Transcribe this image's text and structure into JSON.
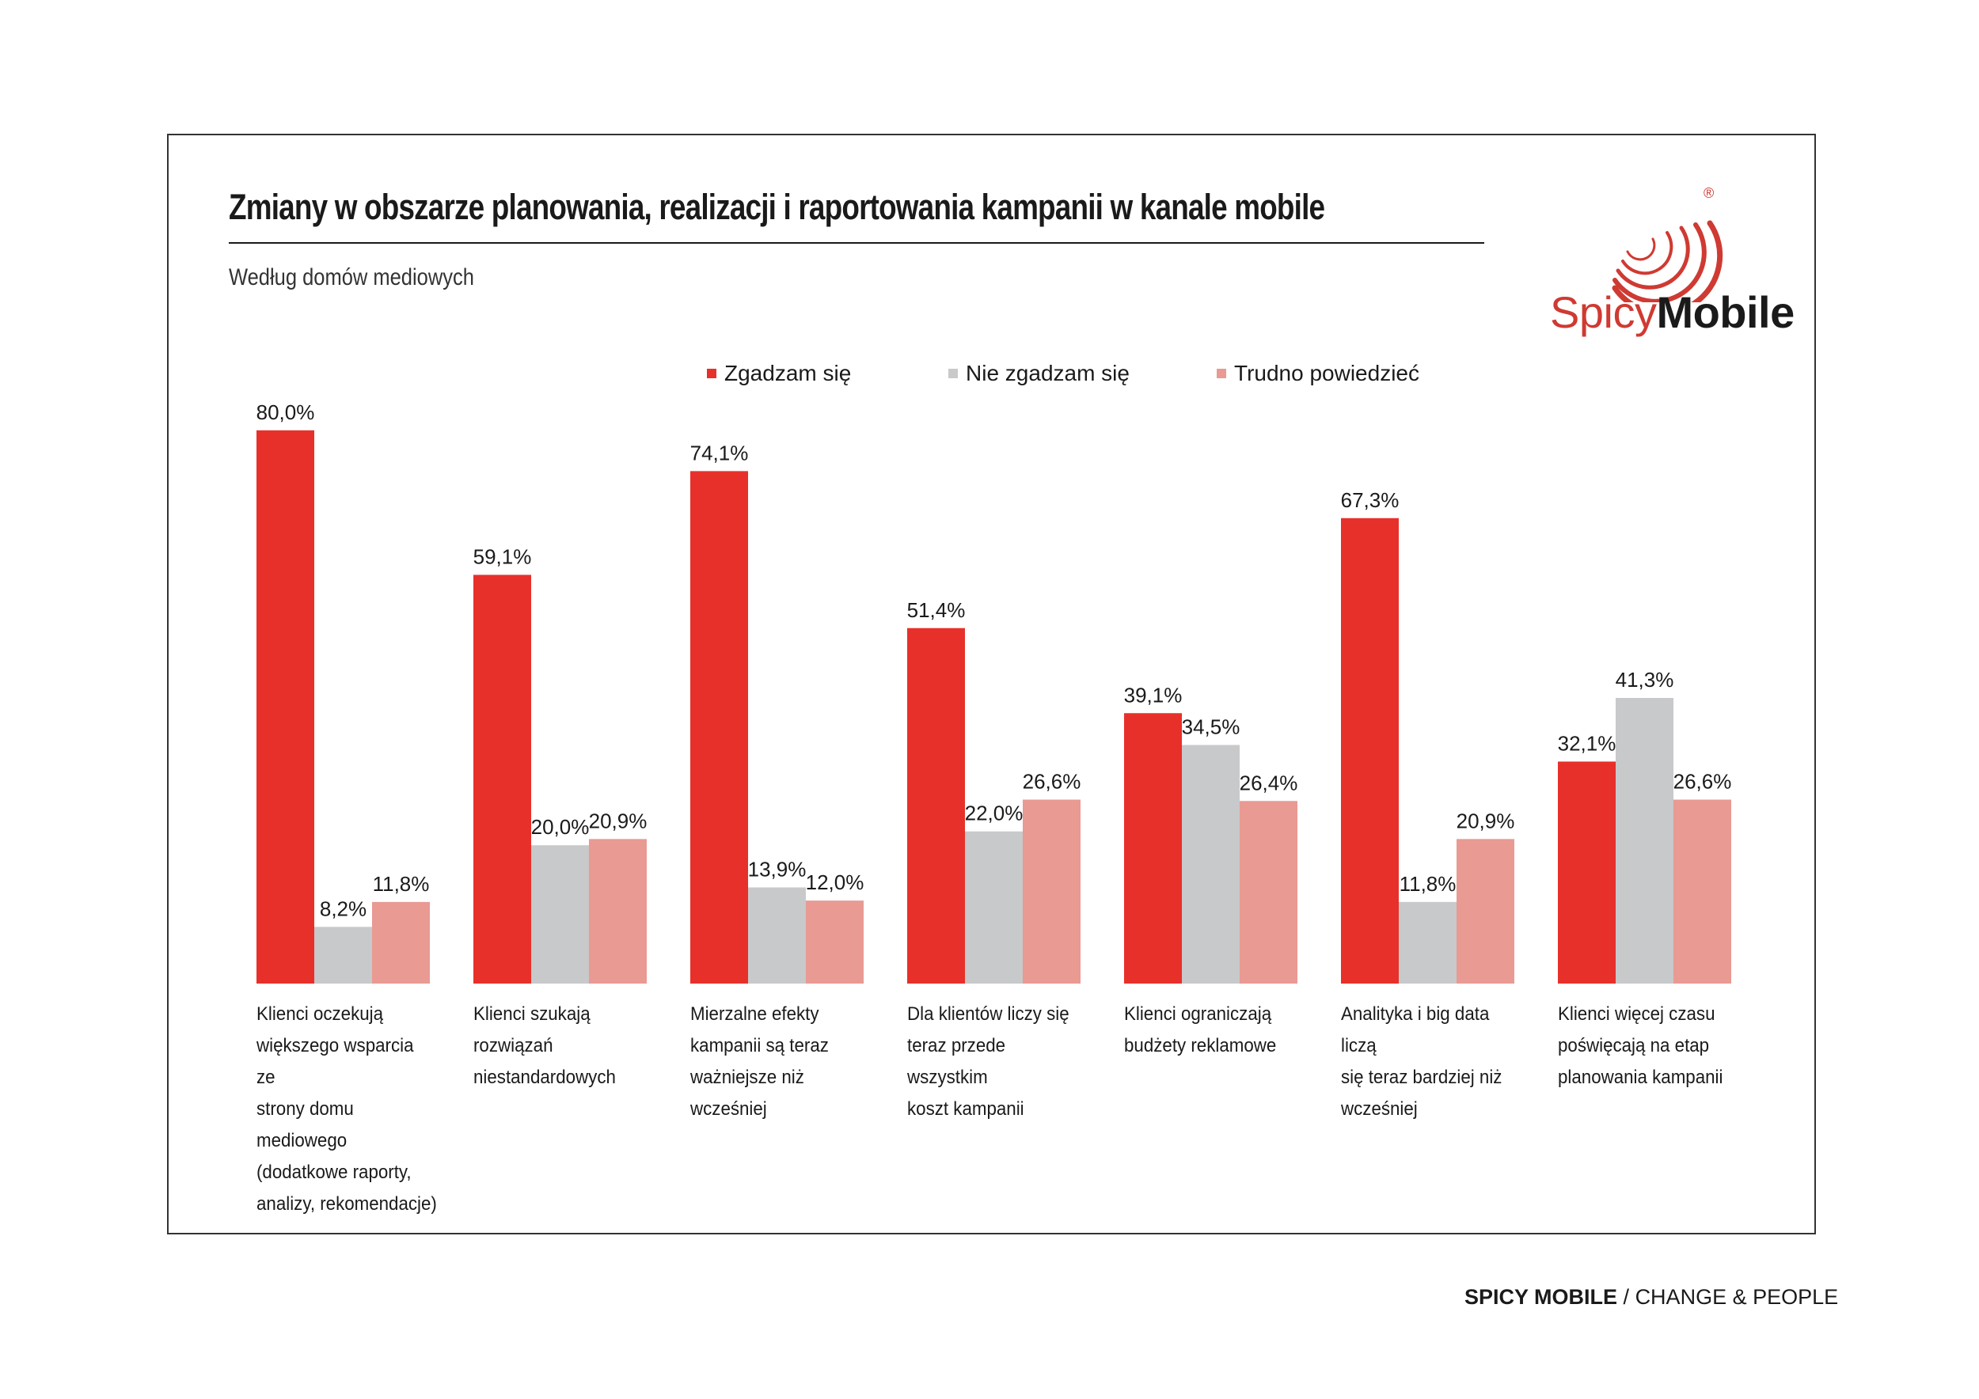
{
  "header": {
    "title": "Zmiany w obszarze planowania, realizacji i raportowania kampanii w kanale mobile",
    "subtitle": "Według domów mediowych"
  },
  "logo": {
    "name_part1": "Spicy",
    "name_part2": "Mobile",
    "mark": "®",
    "icon": "spicy-mobile-swirl-logo"
  },
  "footer": {
    "brand": "SPICY MOBILE",
    "separator": " / ",
    "tagline": "CHANGE & PEOPLE"
  },
  "chart_data": {
    "type": "bar",
    "title": "Zmiany w obszarze planowania, realizacji i raportowania kampanii w kanale mobile",
    "subtitle": "Według domów mediowych",
    "categories": [
      "Klienci oczekują większego wsparcia ze strony domu mediowego (dodatkowe raporty, analizy, rekomendacje)",
      "Klienci szukają rozwiązań niestandardowych",
      "Mierzalne efekty kampanii są teraz ważniejsze niż wcześniej",
      "Dla klientów liczy się teraz przede wszystkim koszt kampanii",
      "Klienci ograniczają budżety reklamowe",
      "Analityka i big data liczą się teraz bardziej niż wcześniej",
      "Klienci więcej czasu poświęcają na etap planowania kampanii"
    ],
    "category_lines": [
      [
        "Klienci oczekują",
        "większego wsparcia ze",
        "strony domu mediowego",
        "(dodatkowe raporty,",
        "analizy, rekomendacje)"
      ],
      [
        "Klienci szukają",
        "rozwiązań",
        "niestandardowych"
      ],
      [
        "Mierzalne efekty",
        "kampanii są teraz",
        "ważniejsze niż wcześniej"
      ],
      [
        "Dla klientów liczy się",
        "teraz przede wszystkim",
        "koszt kampanii"
      ],
      [
        "Klienci ograniczają",
        "budżety reklamowe"
      ],
      [
        "Analityka i big data liczą",
        "się teraz bardziej niż",
        "wcześniej"
      ],
      [
        "Klienci więcej czasu",
        "poświęcają na etap",
        "planowania kampanii"
      ]
    ],
    "series": [
      {
        "name": "Zgadzam się",
        "color": "#e8302a",
        "values": [
          80.0,
          59.1,
          74.1,
          51.4,
          39.1,
          67.3,
          32.1
        ],
        "labels": [
          "80,0%",
          "59,1%",
          "74,1%",
          "51,4%",
          "39,1%",
          "67,3%",
          "32,1%"
        ]
      },
      {
        "name": "Nie zgadzam się",
        "color": "#c8c9ca",
        "values": [
          8.2,
          20.0,
          13.9,
          22.0,
          34.5,
          11.8,
          41.3
        ],
        "labels": [
          "8,2%",
          "20,0%",
          "13,9%",
          "22,0%",
          "34,5%",
          "11,8%",
          "41,3%"
        ]
      },
      {
        "name": "Trudno powiedzieć",
        "color": "#e89a93",
        "values": [
          11.8,
          20.9,
          12.0,
          26.6,
          26.4,
          20.9,
          26.6
        ],
        "labels": [
          "11,8%",
          "20,9%",
          "12,0%",
          "26,6%",
          "26,4%",
          "20,9%",
          "26,6%"
        ]
      }
    ],
    "ylim": [
      0,
      80
    ],
    "grid": false,
    "legend": "top-center"
  }
}
